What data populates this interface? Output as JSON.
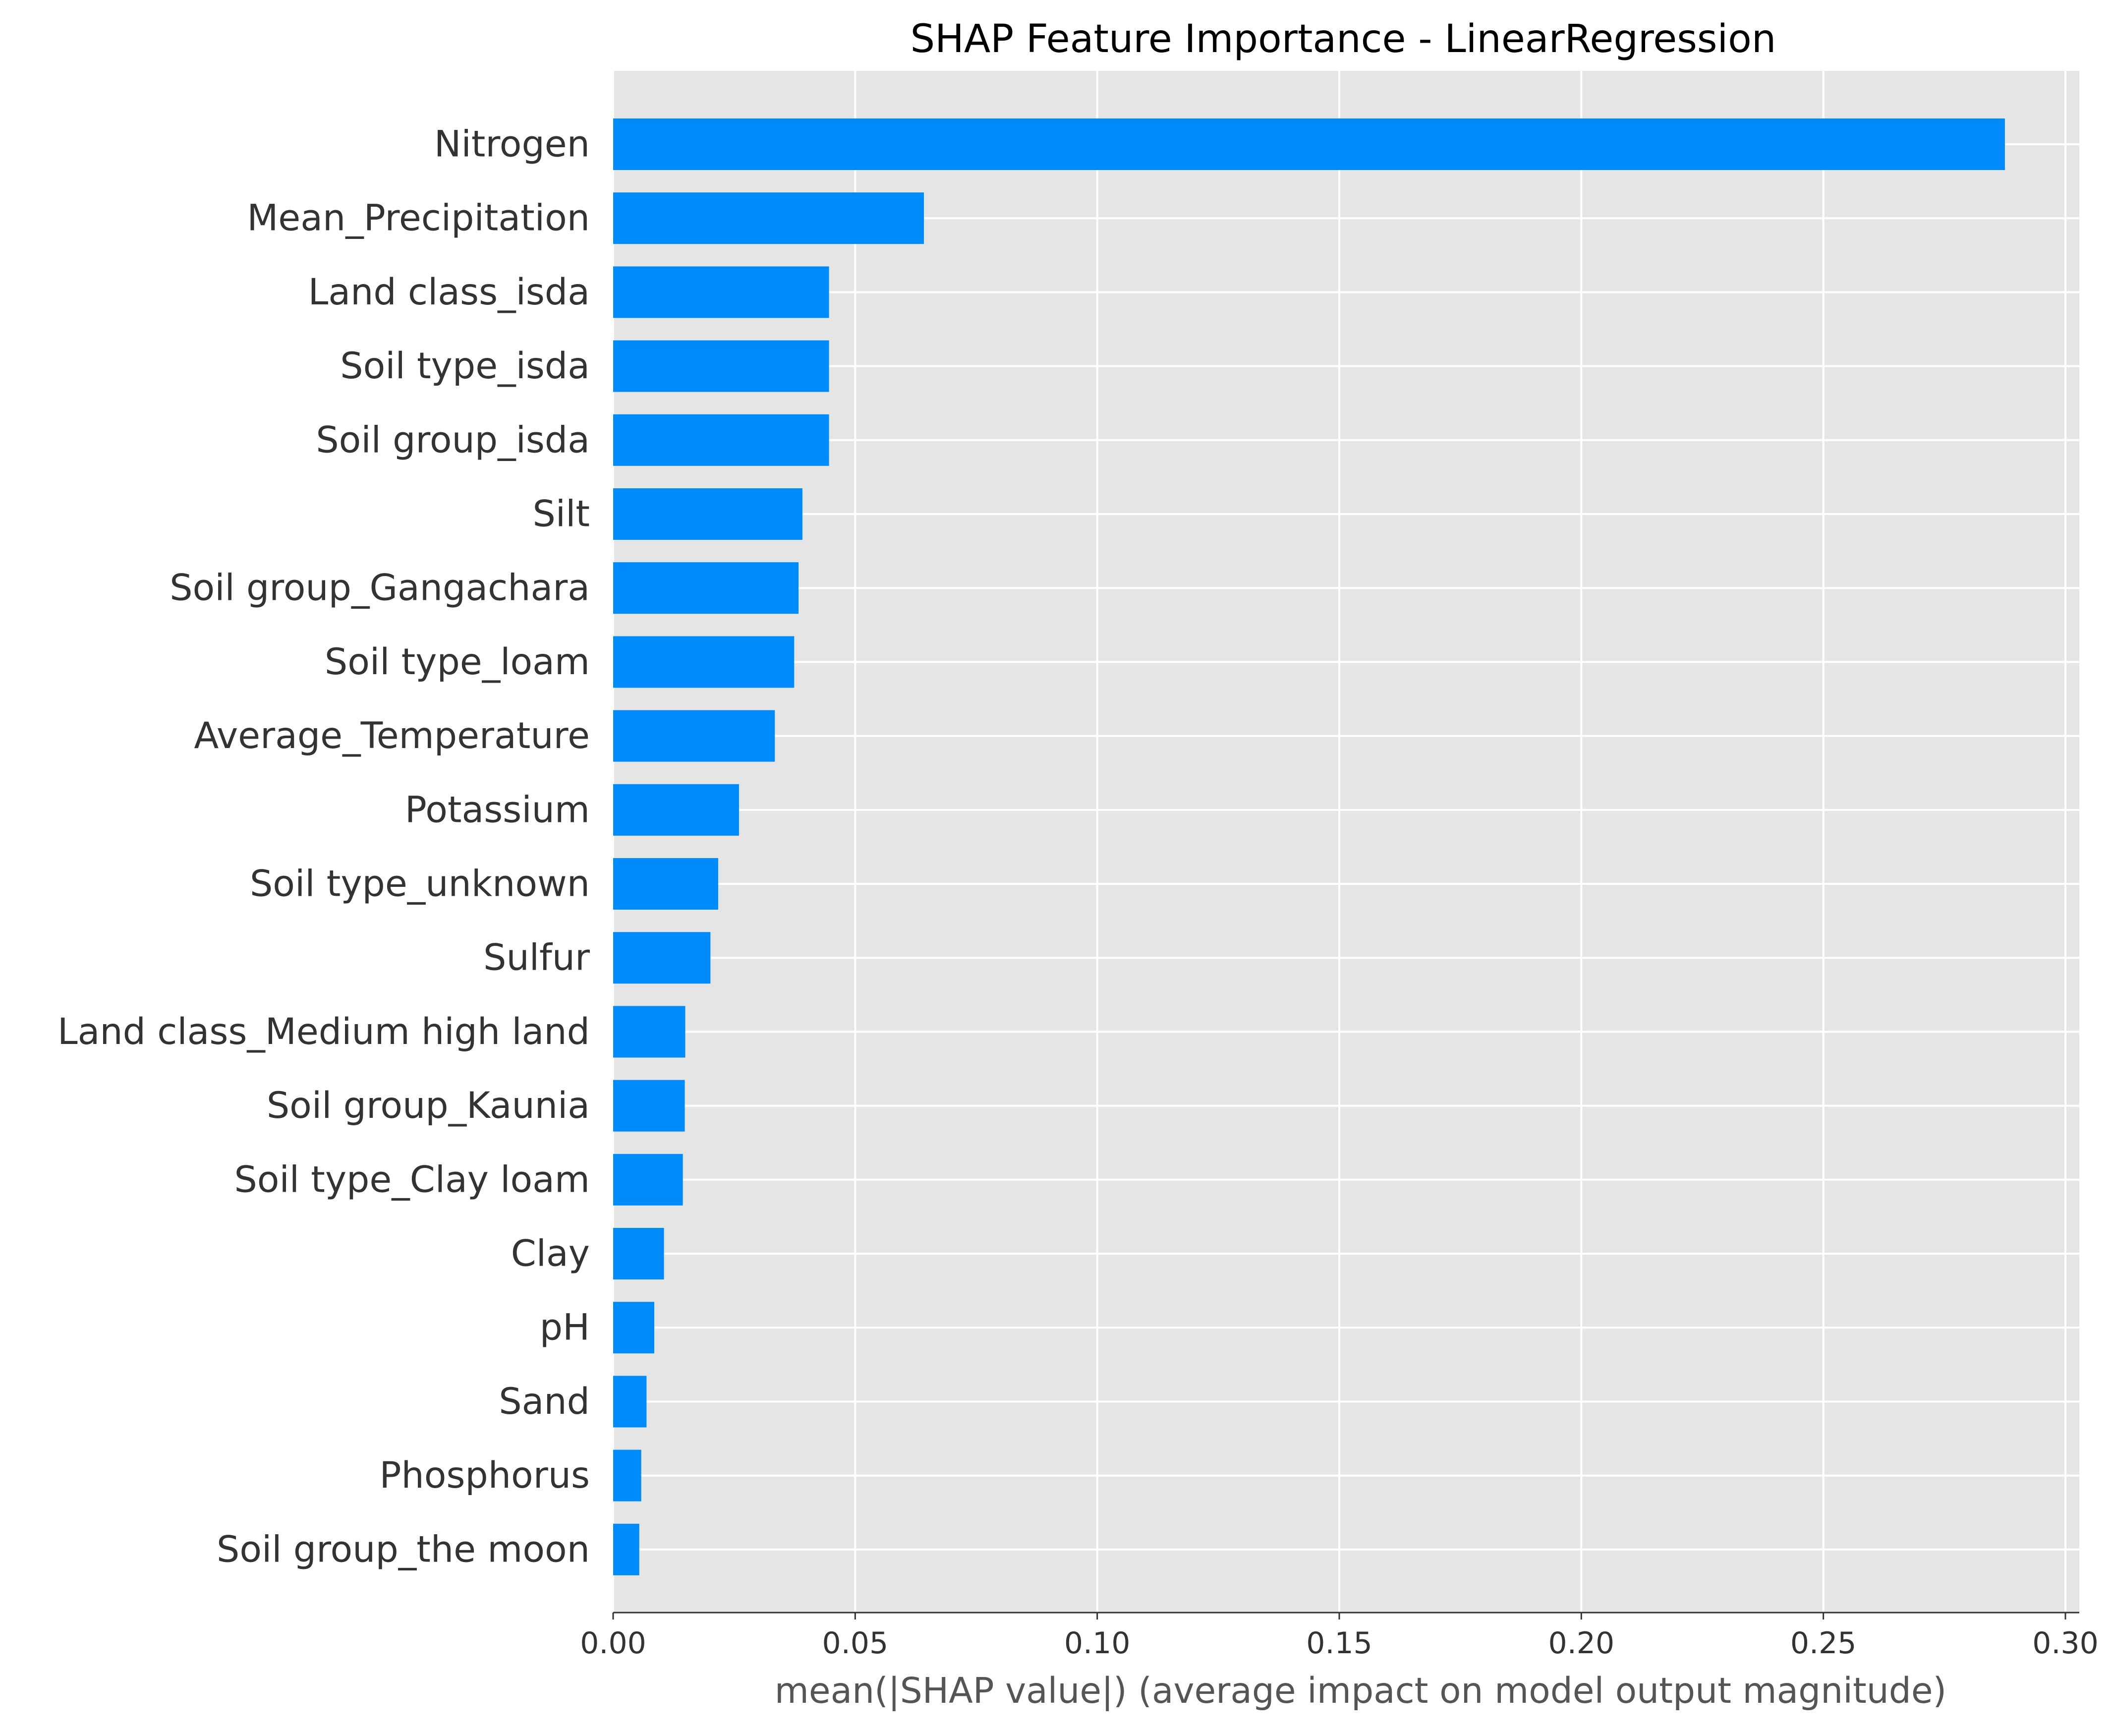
{
  "chart_data": {
    "type": "bar",
    "orientation": "horizontal",
    "title": "SHAP Feature Importance - LinearRegression",
    "xlabel": "mean(|SHAP value|) (average impact on model output magnitude)",
    "ylabel": "",
    "xlim": [
      0,
      0.302
    ],
    "xticks": [
      "0.00",
      "0.05",
      "0.10",
      "0.15",
      "0.20",
      "0.25",
      "0.30"
    ],
    "grid": true,
    "bar_color": "#008bfb",
    "background_color": "#e5e5e5",
    "grid_color": "#ffffff",
    "categories": [
      "Nitrogen",
      "Mean_Precipitation",
      "Land class_isda",
      "Soil type_isda",
      "Soil group_isda",
      "Silt",
      "Soil group_Gangachara",
      "Soil type_loam",
      "Average_Temperature",
      "Potassium",
      "Soil type_unknown",
      "Sulfur",
      "Land class_Medium high land",
      "Soil group_Kaunia",
      "Soil type_Clay loam",
      "Clay",
      "pH",
      "Sand",
      "Phosphorus",
      "Soil group_the moon"
    ],
    "values": [
      0.2875,
      0.0642,
      0.0446,
      0.0446,
      0.0446,
      0.0391,
      0.0383,
      0.0374,
      0.0334,
      0.026,
      0.0217,
      0.0201,
      0.0149,
      0.0148,
      0.0144,
      0.0105,
      0.0085,
      0.0069,
      0.0058,
      0.0054
    ]
  }
}
